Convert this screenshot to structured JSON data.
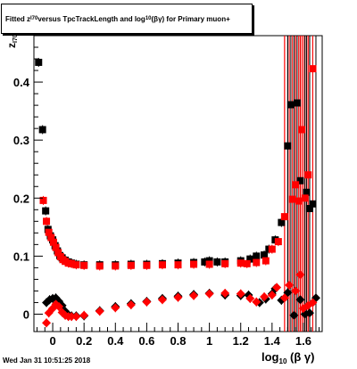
{
  "title": {
    "pre": "Fitted  z",
    "sub1": "I70",
    "mid": " versus TpcTrackLength and log",
    "sub2": "10",
    "post": "(βγ) for Primary muon+"
  },
  "y_axis": {
    "main": "z",
    "sub": "I70"
  },
  "x_axis": {
    "pre": "log",
    "sub": "10",
    "post": " (β γ)"
  },
  "timestamp": "Wed Jan 31 10:51:25 2018",
  "chart_data": {
    "type": "scatter",
    "xlim": [
      -0.12,
      1.72
    ],
    "ylim": [
      -0.03,
      0.48
    ],
    "x_ticks": [
      0,
      0.2,
      0.4,
      0.6,
      0.8,
      1,
      1.2,
      1.4,
      1.6
    ],
    "x_tick_labels": [
      "0",
      "0.2",
      "0.4",
      "0.6",
      "0.8",
      "1",
      "1.2",
      "1.4",
      "1.6"
    ],
    "y_ticks": [
      0,
      0.1,
      0.2,
      0.3,
      0.4
    ],
    "y_tick_labels": [
      "0",
      "0.1",
      "0.2",
      "0.3",
      "0.4"
    ],
    "grid": false,
    "series": [
      {
        "color": "#000000",
        "marker": "square",
        "points": [
          [
            -0.09,
            0.434
          ],
          [
            -0.065,
            0.318
          ],
          [
            -0.045,
            0.178
          ],
          [
            -0.03,
            0.146
          ],
          [
            -0.015,
            0.135
          ],
          [
            0.0,
            0.128
          ],
          [
            0.015,
            0.118
          ],
          [
            0.03,
            0.109
          ],
          [
            0.045,
            0.101
          ],
          [
            0.06,
            0.097
          ],
          [
            0.08,
            0.093
          ],
          [
            0.1,
            0.09
          ],
          [
            0.12,
            0.088
          ],
          [
            0.15,
            0.086
          ],
          [
            0.2,
            0.085
          ],
          [
            0.3,
            0.085
          ],
          [
            0.4,
            0.085
          ],
          [
            0.5,
            0.086
          ],
          [
            0.6,
            0.086
          ],
          [
            0.7,
            0.087
          ],
          [
            0.8,
            0.088
          ],
          [
            0.9,
            0.089
          ],
          [
            0.97,
            0.09
          ],
          [
            1.0,
            0.092
          ],
          [
            1.05,
            0.09
          ],
          [
            1.1,
            0.09
          ],
          [
            1.2,
            0.092
          ],
          [
            1.26,
            0.095
          ],
          [
            1.3,
            0.1
          ],
          [
            1.35,
            0.102
          ],
          [
            1.38,
            0.112
          ],
          [
            1.42,
            0.128
          ],
          [
            1.46,
            0.158
          ],
          [
            1.5,
            0.29
          ],
          [
            1.52,
            0.361
          ],
          [
            1.56,
            0.364
          ],
          [
            1.58,
            0.23
          ],
          [
            1.62,
            0.21
          ],
          [
            1.64,
            0.182
          ],
          [
            1.66,
            0.19
          ]
        ]
      },
      {
        "color": "#ff0000",
        "marker": "square",
        "points": [
          [
            -0.06,
            0.196
          ],
          [
            -0.04,
            0.16
          ],
          [
            -0.025,
            0.141
          ],
          [
            -0.01,
            0.132
          ],
          [
            0.005,
            0.124
          ],
          [
            0.02,
            0.115
          ],
          [
            0.035,
            0.106
          ],
          [
            0.05,
            0.099
          ],
          [
            0.065,
            0.094
          ],
          [
            0.08,
            0.091
          ],
          [
            0.1,
            0.088
          ],
          [
            0.12,
            0.087
          ],
          [
            0.15,
            0.085
          ],
          [
            0.2,
            0.084
          ],
          [
            0.3,
            0.083
          ],
          [
            0.4,
            0.083
          ],
          [
            0.5,
            0.084
          ],
          [
            0.6,
            0.084
          ],
          [
            0.7,
            0.085
          ],
          [
            0.8,
            0.085
          ],
          [
            0.9,
            0.086
          ],
          [
            1.0,
            0.086
          ],
          [
            1.1,
            0.087
          ],
          [
            1.2,
            0.088
          ],
          [
            1.24,
            0.087
          ],
          [
            1.3,
            0.089
          ],
          [
            1.36,
            0.092
          ],
          [
            1.4,
            0.112
          ],
          [
            1.44,
            0.125
          ],
          [
            1.48,
            0.168
          ],
          [
            1.53,
            0.198
          ],
          [
            1.55,
            0.223
          ],
          [
            1.57,
            0.195
          ],
          [
            1.59,
            0.318
          ],
          [
            1.61,
            0.2
          ],
          [
            1.63,
            0.24
          ],
          [
            1.66,
            0.423
          ]
        ]
      },
      {
        "color": "#000000",
        "marker": "diamond",
        "points": [
          [
            -0.04,
            0.02
          ],
          [
            -0.02,
            0.025
          ],
          [
            0.0,
            0.027
          ],
          [
            0.02,
            0.028
          ],
          [
            0.04,
            0.022
          ],
          [
            0.06,
            0.015
          ],
          [
            0.08,
            0.005
          ],
          [
            0.1,
            -0.001
          ],
          [
            0.12,
            -0.003
          ],
          [
            0.15,
            -0.003
          ],
          [
            0.2,
            -0.003
          ],
          [
            0.3,
            0.006
          ],
          [
            0.4,
            0.013
          ],
          [
            0.5,
            0.018
          ],
          [
            0.6,
            0.022
          ],
          [
            0.7,
            0.027
          ],
          [
            0.8,
            0.031
          ],
          [
            0.9,
            0.034
          ],
          [
            1.0,
            0.036
          ],
          [
            1.1,
            0.033
          ],
          [
            1.2,
            0.032
          ],
          [
            1.25,
            0.033
          ],
          [
            1.32,
            0.02
          ],
          [
            1.36,
            0.026
          ],
          [
            1.4,
            0.035
          ],
          [
            1.42,
            0.044
          ],
          [
            1.46,
            0.024
          ],
          [
            1.5,
            0.037
          ],
          [
            1.54,
            -0.002
          ],
          [
            1.58,
            0.025
          ],
          [
            1.61,
            0.0
          ],
          [
            1.64,
            0.002
          ],
          [
            1.68,
            0.028
          ]
        ]
      },
      {
        "color": "#ff0000",
        "marker": "diamond",
        "points": [
          [
            -0.04,
            -0.015
          ],
          [
            -0.025,
            0.002
          ],
          [
            0.0,
            0.01
          ],
          [
            0.02,
            0.017
          ],
          [
            0.04,
            0.013
          ],
          [
            0.06,
            0.003
          ],
          [
            0.08,
            -0.002
          ],
          [
            0.1,
            -0.004
          ],
          [
            0.12,
            -0.004
          ],
          [
            0.15,
            -0.004
          ],
          [
            0.2,
            -0.002
          ],
          [
            0.3,
            0.005
          ],
          [
            0.4,
            0.011
          ],
          [
            0.5,
            0.016
          ],
          [
            0.6,
            0.021
          ],
          [
            0.7,
            0.025
          ],
          [
            0.8,
            0.029
          ],
          [
            0.9,
            0.032
          ],
          [
            1.0,
            0.035
          ],
          [
            1.1,
            0.036
          ],
          [
            1.2,
            0.035
          ],
          [
            1.26,
            0.027
          ],
          [
            1.3,
            0.021
          ],
          [
            1.35,
            0.03
          ],
          [
            1.4,
            0.033
          ],
          [
            1.43,
            0.046
          ],
          [
            1.48,
            0.028
          ],
          [
            1.51,
            0.05
          ],
          [
            1.55,
            0.04
          ],
          [
            1.58,
            0.068
          ],
          [
            1.6,
            0.01
          ],
          [
            1.63,
            0.015
          ],
          [
            1.66,
            0.02
          ]
        ]
      }
    ]
  }
}
